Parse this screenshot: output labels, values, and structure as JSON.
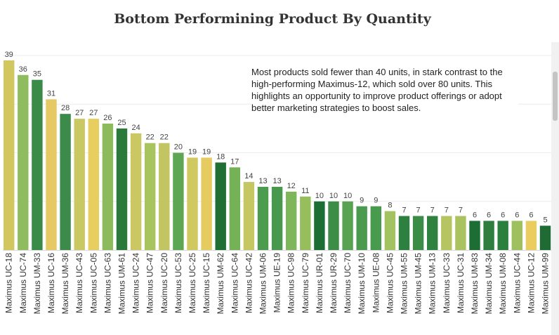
{
  "chart_data": {
    "type": "bar",
    "title": "Bottom Performining Product By Quantity",
    "xlabel": "",
    "ylabel": "",
    "ylim": [
      0,
      39
    ],
    "grid": true,
    "annotation": "Most products sold fewer than 40 units, in stark contrast to the high-performing Maximus-12, which sold over 80 units. This highlights an opportunity to improve product offerings or adopt better marketing strategies to boost sales.",
    "categories": [
      "Maximus UC-18",
      "Maximus UC-74",
      "Maximus UM-33",
      "Maximus UC-16",
      "Maximus UM-36",
      "Maximus UC-43",
      "Maximus UC-05",
      "Maximus UC-63",
      "Maximus UM-61",
      "Maximus UC-24",
      "Maximus UC-47",
      "Maximus UC-20",
      "Maximus UC-53",
      "Maximus UC-25",
      "Maximus UC-15",
      "Maximus UM-62",
      "Maximus UC-64",
      "Maximus UC-42",
      "Maximus UM-06",
      "Maximus UE-19",
      "Maximus UC-98",
      "Maximus UC-79",
      "Maximus UR-01",
      "Maximus UR-29",
      "Maximus UC-70",
      "Maximus UM-10",
      "Maximus UE-08",
      "Maximus UC-45",
      "Maximus UM-55",
      "Maximus UM-45",
      "Maximus UM-13",
      "Maximus UC-33",
      "Maximus UC-31",
      "Maximus UM-83",
      "Maximus UM-34",
      "Maximus UM-08",
      "Maximus UC-44",
      "Maximus UC-12",
      "Maximus UM-99"
    ],
    "values": [
      39,
      36,
      35,
      31,
      28,
      27,
      27,
      26,
      25,
      24,
      22,
      22,
      20,
      19,
      19,
      18,
      17,
      14,
      13,
      13,
      12,
      11,
      10,
      10,
      10,
      9,
      9,
      8,
      7,
      7,
      7,
      7,
      7,
      6,
      6,
      6,
      6,
      6,
      5
    ],
    "colors": [
      "#d2c65f",
      "#8fbc5e",
      "#3a8a48",
      "#e6c864",
      "#3d8b4a",
      "#c9c862",
      "#e8cd5f",
      "#8cbb5d",
      "#2b7a3c",
      "#cbc863",
      "#a8c45f",
      "#c2c562",
      "#5da653",
      "#d0c960",
      "#e6cb61",
      "#1f6e33",
      "#74b157",
      "#c5c763",
      "#4c9c50",
      "#48994e",
      "#7fb65b",
      "#96be5d",
      "#1d6e35",
      "#3b8d48",
      "#58a352",
      "#4a9b4f",
      "#489a4d",
      "#a2c35f",
      "#2d803f",
      "#3b8c47",
      "#2f813f",
      "#b6c461",
      "#abc260",
      "#1d6e35",
      "#2f7e3f",
      "#2d7f3e",
      "#9ec05f",
      "#ebcc60",
      "#1e6c33"
    ]
  }
}
